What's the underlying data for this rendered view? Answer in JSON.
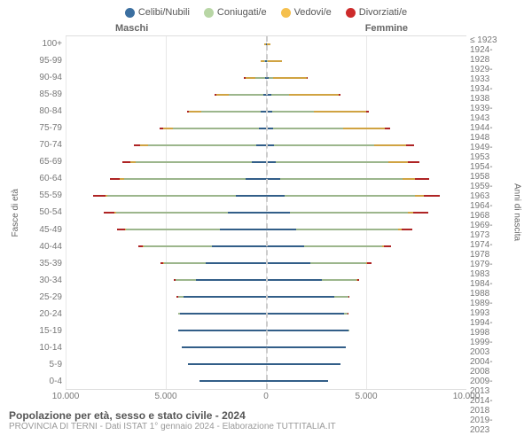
{
  "type": "population-pyramid",
  "legend": [
    {
      "label": "Celibi/Nubili",
      "color": "#3b6fa0"
    },
    {
      "label": "Coniugati/e",
      "color": "#b8d6a5"
    },
    {
      "label": "Vedovi/e",
      "color": "#f5c04e"
    },
    {
      "label": "Divorziati/e",
      "color": "#cd2b2b"
    }
  ],
  "headers": {
    "male": "Maschi",
    "female": "Femmine"
  },
  "y_left_label": "Fasce di età",
  "y_right_label": "Anni di nascita",
  "x_max": 10000,
  "x_ticks": [
    {
      "pos": 0,
      "label": "10.000"
    },
    {
      "pos": 0.25,
      "label": "5.000"
    },
    {
      "pos": 0.5,
      "label": "0"
    },
    {
      "pos": 0.75,
      "label": "5.000"
    },
    {
      "pos": 1,
      "label": "10.000"
    }
  ],
  "footer": {
    "title": "Popolazione per età, sesso e stato civile - 2024",
    "sub": "PROVINCIA DI TERNI - Dati ISTAT 1° gennaio 2024 - Elaborazione TUTTITALIA.IT"
  },
  "rows": [
    {
      "age": "100+",
      "year": "≤ 1923",
      "m": {
        "cel": 0,
        "con": 0,
        "ved": 40,
        "div": 0
      },
      "f": {
        "cel": 10,
        "con": 0,
        "ved": 180,
        "div": 0
      }
    },
    {
      "age": "95-99",
      "year": "1924-1928",
      "m": {
        "cel": 10,
        "con": 60,
        "ved": 180,
        "div": 0
      },
      "f": {
        "cel": 40,
        "con": 40,
        "ved": 700,
        "div": 0
      }
    },
    {
      "age": "90-94",
      "year": "1929-1933",
      "m": {
        "cel": 50,
        "con": 500,
        "ved": 450,
        "div": 10
      },
      "f": {
        "cel": 150,
        "con": 200,
        "ved": 1700,
        "div": 20
      }
    },
    {
      "age": "85-89",
      "year": "1934-1938",
      "m": {
        "cel": 150,
        "con": 1700,
        "ved": 650,
        "div": 30
      },
      "f": {
        "cel": 250,
        "con": 900,
        "ved": 2500,
        "div": 60
      }
    },
    {
      "age": "80-84",
      "year": "1939-1943",
      "m": {
        "cel": 250,
        "con": 3000,
        "ved": 600,
        "div": 80
      },
      "f": {
        "cel": 300,
        "con": 2100,
        "ved": 2600,
        "div": 130
      }
    },
    {
      "age": "75-79",
      "year": "1944-1948",
      "m": {
        "cel": 350,
        "con": 4300,
        "ved": 500,
        "div": 150
      },
      "f": {
        "cel": 350,
        "con": 3500,
        "ved": 2100,
        "div": 250
      }
    },
    {
      "age": "70-74",
      "year": "1949-1953",
      "m": {
        "cel": 500,
        "con": 5400,
        "ved": 400,
        "div": 280
      },
      "f": {
        "cel": 400,
        "con": 5000,
        "ved": 1600,
        "div": 400
      }
    },
    {
      "age": "65-69",
      "year": "1954-1958",
      "m": {
        "cel": 700,
        "con": 5800,
        "ved": 250,
        "div": 400
      },
      "f": {
        "cel": 500,
        "con": 5600,
        "ved": 1000,
        "div": 550
      }
    },
    {
      "age": "60-64",
      "year": "1959-1963",
      "m": {
        "cel": 1000,
        "con": 6100,
        "ved": 180,
        "div": 500
      },
      "f": {
        "cel": 700,
        "con": 6100,
        "ved": 650,
        "div": 700
      }
    },
    {
      "age": "55-59",
      "year": "1964-1968",
      "m": {
        "cel": 1500,
        "con": 6400,
        "ved": 120,
        "div": 600
      },
      "f": {
        "cel": 950,
        "con": 6500,
        "ved": 420,
        "div": 800
      }
    },
    {
      "age": "50-54",
      "year": "1969-1973",
      "m": {
        "cel": 1900,
        "con": 5600,
        "ved": 70,
        "div": 550
      },
      "f": {
        "cel": 1200,
        "con": 5900,
        "ved": 250,
        "div": 750
      }
    },
    {
      "age": "45-49",
      "year": "1974-1978",
      "m": {
        "cel": 2300,
        "con": 4700,
        "ved": 40,
        "div": 400
      },
      "f": {
        "cel": 1500,
        "con": 5100,
        "ved": 150,
        "div": 550
      }
    },
    {
      "age": "40-44",
      "year": "1979-1983",
      "m": {
        "cel": 2700,
        "con": 3400,
        "ved": 20,
        "div": 250
      },
      "f": {
        "cel": 1900,
        "con": 3900,
        "ved": 70,
        "div": 350
      }
    },
    {
      "age": "35-39",
      "year": "1984-1988",
      "m": {
        "cel": 3000,
        "con": 2100,
        "ved": 10,
        "div": 130
      },
      "f": {
        "cel": 2200,
        "con": 2800,
        "ved": 30,
        "div": 220
      }
    },
    {
      "age": "30-34",
      "year": "1989-1993",
      "m": {
        "cel": 3500,
        "con": 1000,
        "ved": 0,
        "div": 50
      },
      "f": {
        "cel": 2800,
        "con": 1700,
        "ved": 10,
        "div": 100
      }
    },
    {
      "age": "25-29",
      "year": "1994-1998",
      "m": {
        "cel": 4100,
        "con": 300,
        "ved": 0,
        "div": 10
      },
      "f": {
        "cel": 3400,
        "con": 700,
        "ved": 0,
        "div": 30
      }
    },
    {
      "age": "20-24",
      "year": "1999-2003",
      "m": {
        "cel": 4300,
        "con": 40,
        "ved": 0,
        "div": 0
      },
      "f": {
        "cel": 3900,
        "con": 150,
        "ved": 0,
        "div": 5
      }
    },
    {
      "age": "15-19",
      "year": "2004-2008",
      "m": {
        "cel": 4400,
        "con": 0,
        "ved": 0,
        "div": 0
      },
      "f": {
        "cel": 4100,
        "con": 10,
        "ved": 0,
        "div": 0
      }
    },
    {
      "age": "10-14",
      "year": "2009-2013",
      "m": {
        "cel": 4200,
        "con": 0,
        "ved": 0,
        "div": 0
      },
      "f": {
        "cel": 4000,
        "con": 0,
        "ved": 0,
        "div": 0
      }
    },
    {
      "age": "5-9",
      "year": "2014-2018",
      "m": {
        "cel": 3900,
        "con": 0,
        "ved": 0,
        "div": 0
      },
      "f": {
        "cel": 3700,
        "con": 0,
        "ved": 0,
        "div": 0
      }
    },
    {
      "age": "0-4",
      "year": "2019-2023",
      "m": {
        "cel": 3300,
        "con": 0,
        "ved": 0,
        "div": 0
      },
      "f": {
        "cel": 3100,
        "con": 0,
        "ved": 0,
        "div": 0
      }
    }
  ],
  "colors": {
    "cel": "#3b6fa0",
    "con": "#b8d6a5",
    "ved": "#f5c04e",
    "div": "#cd2b2b",
    "grid": "#e8e8e8",
    "background": "#ffffff"
  }
}
